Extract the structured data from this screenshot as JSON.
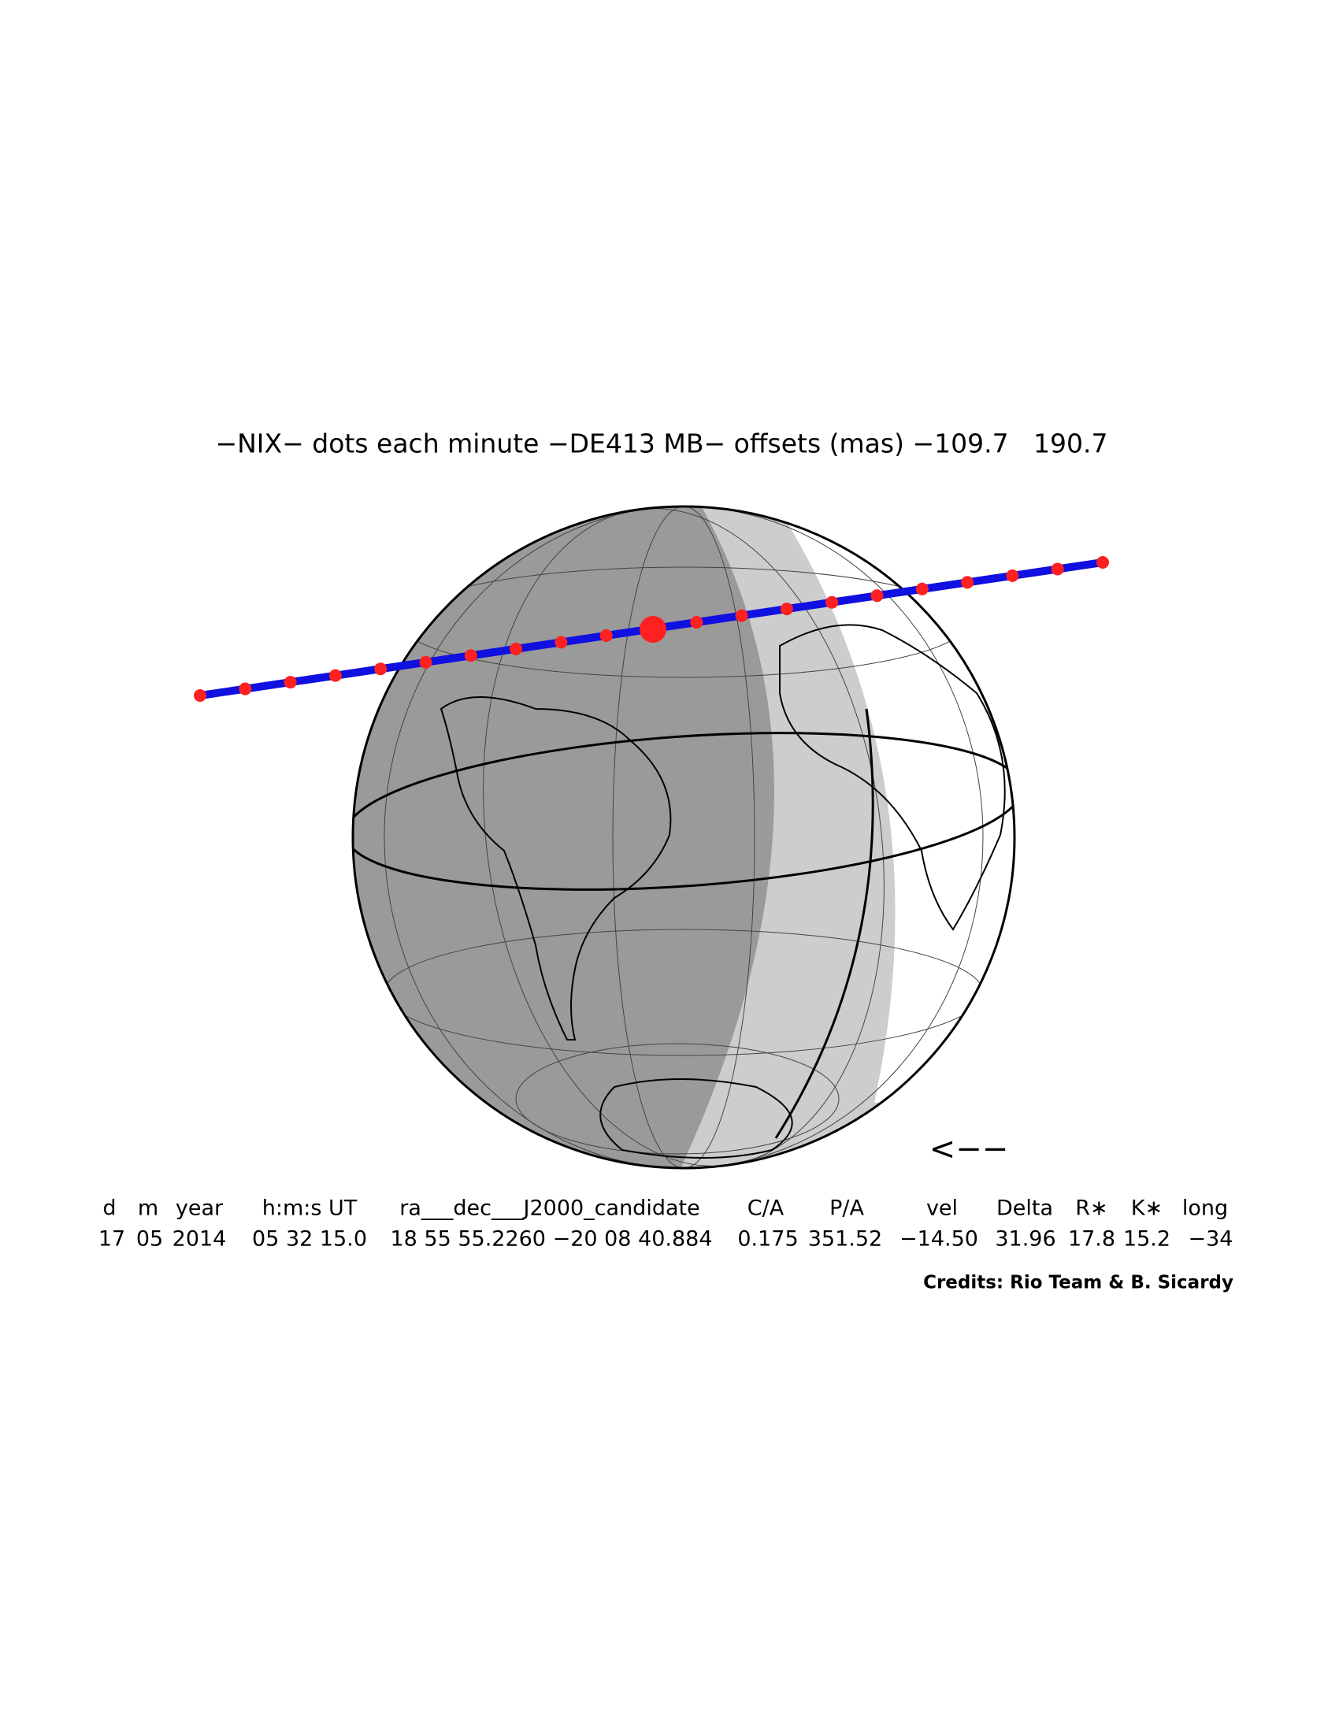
{
  "header": {
    "title": "−NIX− dots each minute −DE413 MB− offsets (mas) −109.7   190.7"
  },
  "annotations": {
    "arrow": "<−−"
  },
  "table": {
    "columns": [
      "d",
      "m",
      "year",
      "h:m:s UT",
      "ra___dec___J2000_candidate",
      "C/A",
      "P/A",
      "vel",
      "Delta",
      "R∗",
      "K∗",
      "long"
    ],
    "rows": [
      [
        "17",
        "05",
        "2014",
        "05 32 15.0",
        "18 55 55.2260 −20 08 40.884",
        "0.175",
        "351.52",
        "−14.50",
        "31.96",
        "17.8",
        "15.2",
        "−34"
      ]
    ]
  },
  "footer": {
    "credits": "Credits: Rio Team & B. Sicardy"
  }
}
